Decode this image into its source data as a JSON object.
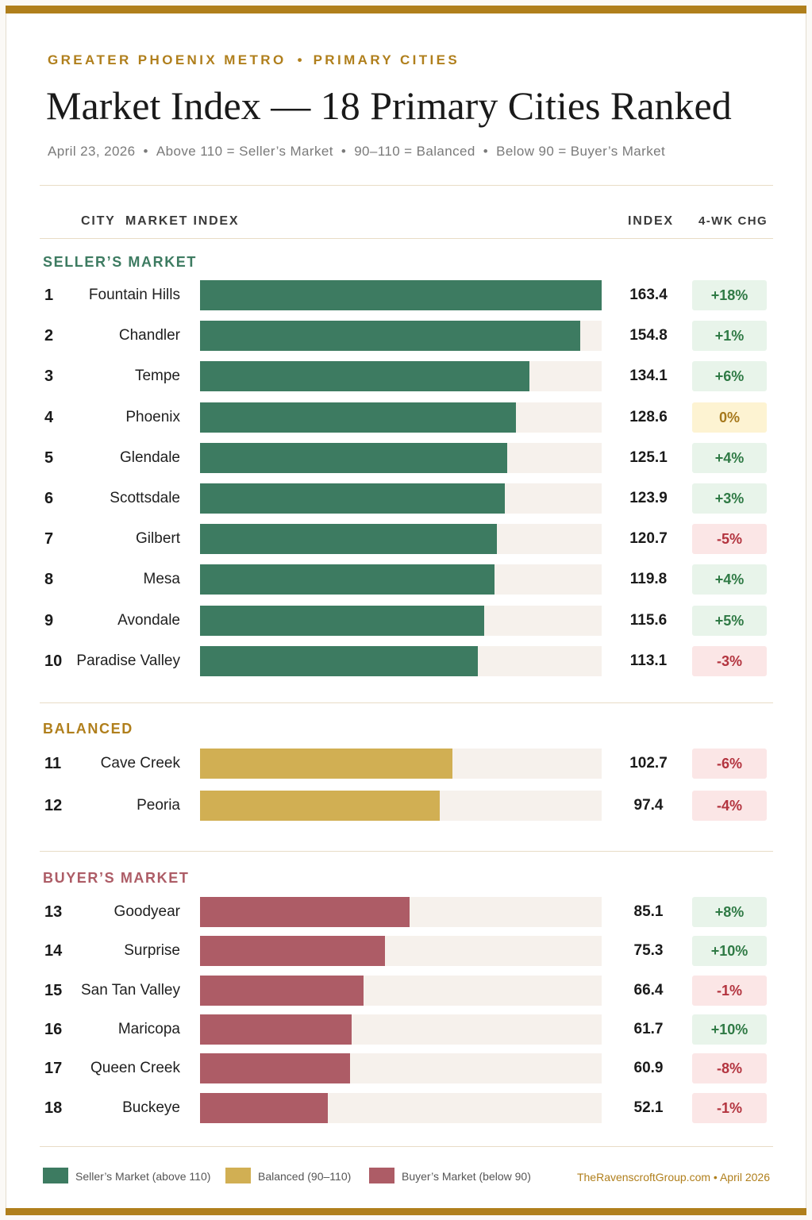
{
  "header": {
    "eyebrow_left": "GREATER PHOENIX METRO",
    "eyebrow_dot": "•",
    "eyebrow_right": "PRIMARY CITIES",
    "title": "Market Index — 18 Primary Cities Ranked",
    "subtitle": [
      "April 23, 2026",
      "Above 110 = Seller’s Market",
      "90–110 = Balanced",
      "Below 90 = Buyer’s Market"
    ],
    "subtitle_sep": "•"
  },
  "columns": {
    "city": "CITY",
    "market_index": "MARKET INDEX",
    "index": "INDEX",
    "change": "4-WK CHG"
  },
  "colors": {
    "gold": "#b07f1c",
    "seller": "#3d7b61",
    "balanced": "#d1af53",
    "buyer": "#ad5c66",
    "track": "#f6f1ec",
    "pos_bg": "#e8f4ea",
    "pos_fg": "#2f7a45",
    "neg_bg": "#fbe6e6",
    "neg_fg": "#b3343f",
    "zero_bg": "#fdf3d2",
    "zero_fg": "#a6781b"
  },
  "chart_data": {
    "type": "bar",
    "orientation": "horizontal",
    "xlim": [
      0,
      163.4
    ],
    "sections": [
      {
        "key": "seller",
        "label": "SELLER’S MARKET",
        "rows": [
          {
            "rank": "1",
            "city": "Fountain Hills",
            "value": 163.4,
            "change": "+18%"
          },
          {
            "rank": "2",
            "city": "Chandler",
            "value": 154.8,
            "change": "+1%"
          },
          {
            "rank": "3",
            "city": "Tempe",
            "value": 134.1,
            "change": "+6%"
          },
          {
            "rank": "4",
            "city": "Phoenix",
            "value": 128.6,
            "change": "0%"
          },
          {
            "rank": "5",
            "city": "Glendale",
            "value": 125.1,
            "change": "+4%"
          },
          {
            "rank": "6",
            "city": "Scottsdale",
            "value": 123.9,
            "change": "+3%"
          },
          {
            "rank": "7",
            "city": "Gilbert",
            "value": 120.7,
            "change": "-5%"
          },
          {
            "rank": "8",
            "city": "Mesa",
            "value": 119.8,
            "change": "+4%"
          },
          {
            "rank": "9",
            "city": "Avondale",
            "value": 115.6,
            "change": "+5%"
          },
          {
            "rank": "10",
            "city": "Paradise Valley",
            "value": 113.1,
            "change": "-3%"
          }
        ]
      },
      {
        "key": "balanced",
        "label": "BALANCED",
        "rows": [
          {
            "rank": "11",
            "city": "Cave Creek",
            "value": 102.7,
            "change": "-6%"
          },
          {
            "rank": "12",
            "city": "Peoria",
            "value": 97.4,
            "change": "-4%"
          }
        ]
      },
      {
        "key": "buyer",
        "label": "BUYER’S MARKET",
        "rows": [
          {
            "rank": "13",
            "city": "Goodyear",
            "value": 85.1,
            "change": "+8%"
          },
          {
            "rank": "14",
            "city": "Surprise",
            "value": 75.3,
            "change": "+10%"
          },
          {
            "rank": "15",
            "city": "San Tan Valley",
            "value": 66.4,
            "change": "-1%"
          },
          {
            "rank": "16",
            "city": "Maricopa",
            "value": 61.7,
            "change": "+10%"
          },
          {
            "rank": "17",
            "city": "Queen Creek",
            "value": 60.9,
            "change": "-8%"
          },
          {
            "rank": "18",
            "city": "Buckeye",
            "value": 52.1,
            "change": "-1%"
          }
        ]
      }
    ],
    "legend": [
      {
        "key": "seller",
        "label": "Seller’s Market (above 110)"
      },
      {
        "key": "balanced",
        "label": "Balanced (90–110)"
      },
      {
        "key": "buyer",
        "label": "Buyer’s Market (below 90)"
      }
    ]
  },
  "footer": {
    "site": "TheRavenscroftGroup.com",
    "sep": "•",
    "date": "April 2026"
  }
}
